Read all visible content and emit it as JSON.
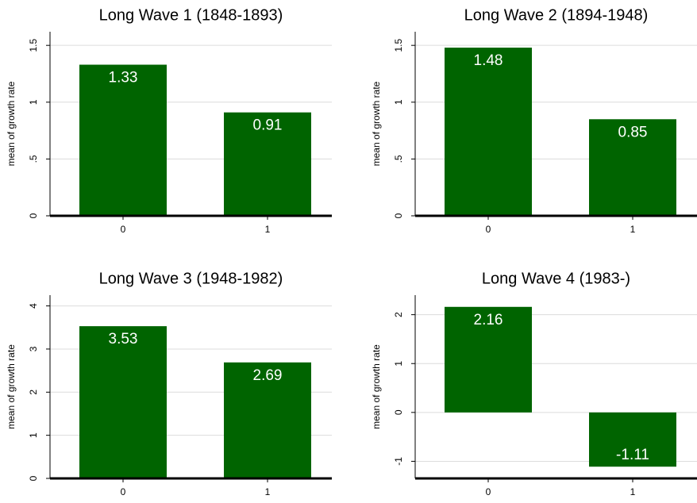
{
  "chart_data": [
    {
      "type": "bar",
      "title": "Long Wave 1 (1848-1893)",
      "ylabel": "mean of growth rate",
      "categories": [
        "0",
        "1"
      ],
      "values": [
        1.33,
        0.91
      ],
      "color": "#006400",
      "ylim": [
        0,
        1.62
      ],
      "yticks": [
        0,
        {
          "value": 0.5,
          "label": ".5"
        },
        1,
        1.5
      ],
      "grid": true
    },
    {
      "type": "bar",
      "title": "Long Wave 2 (1894-1948)",
      "ylabel": "mean of growth rate",
      "categories": [
        "0",
        "1"
      ],
      "values": [
        1.48,
        0.85
      ],
      "color": "#006400",
      "ylim": [
        0,
        1.62
      ],
      "yticks": [
        0,
        {
          "value": 0.5,
          "label": ".5"
        },
        1,
        1.5
      ],
      "grid": true
    },
    {
      "type": "bar",
      "title": "Long Wave 3 (1948-1982)",
      "ylabel": "mean of growth rate",
      "categories": [
        "0",
        "1"
      ],
      "values": [
        3.53,
        2.69
      ],
      "color": "#006400",
      "ylim": [
        0,
        4.25
      ],
      "yticks": [
        0,
        1,
        2,
        3,
        4
      ],
      "grid": true
    },
    {
      "type": "bar",
      "title": "Long Wave 4 (1983-)",
      "ylabel": "mean of growth rate",
      "categories": [
        "0",
        "1"
      ],
      "values": [
        2.16,
        -1.11
      ],
      "color": "#006400",
      "ylim": [
        -1.35,
        2.4
      ],
      "yticks": [
        -1,
        0,
        1,
        2
      ],
      "grid": true
    }
  ]
}
